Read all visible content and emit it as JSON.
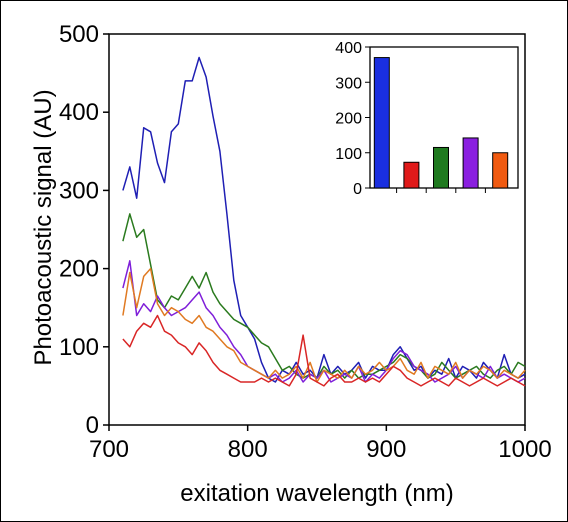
{
  "chart_data": [
    {
      "type": "line",
      "xlabel": "exitation wavelength (nm)",
      "ylabel": "Photoacoustic signal (AU)",
      "xlim": [
        700,
        1000
      ],
      "ylim": [
        0,
        500
      ],
      "xticks": [
        700,
        800,
        900,
        1000
      ],
      "yticks": [
        0,
        100,
        200,
        300,
        400,
        500
      ],
      "grid": false,
      "series": [
        {
          "color": "#1f1fb4",
          "x": [
            710,
            715,
            720,
            725,
            730,
            735,
            740,
            745,
            750,
            755,
            760,
            765,
            770,
            775,
            780,
            785,
            790,
            795,
            800,
            805,
            810,
            815,
            820,
            825,
            830,
            835,
            840,
            845,
            850,
            855,
            860,
            865,
            870,
            875,
            880,
            885,
            890,
            895,
            900,
            905,
            910,
            915,
            920,
            925,
            930,
            935,
            940,
            945,
            950,
            955,
            960,
            965,
            970,
            975,
            980,
            985,
            990,
            995,
            1000
          ],
          "y": [
            300,
            330,
            290,
            380,
            375,
            335,
            310,
            375,
            385,
            440,
            440,
            470,
            445,
            395,
            350,
            270,
            185,
            140,
            125,
            110,
            80,
            60,
            55,
            70,
            65,
            80,
            65,
            70,
            60,
            90,
            65,
            75,
            65,
            70,
            80,
            60,
            75,
            70,
            70,
            90,
            100,
            85,
            70,
            75,
            60,
            70,
            65,
            85,
            60,
            75,
            70,
            60,
            80,
            70,
            60,
            90,
            65,
            60,
            65
          ]
        },
        {
          "color": "#2a7a1e",
          "x": [
            710,
            715,
            720,
            725,
            730,
            735,
            740,
            745,
            750,
            755,
            760,
            765,
            770,
            775,
            780,
            785,
            790,
            795,
            800,
            805,
            810,
            815,
            820,
            825,
            830,
            835,
            840,
            845,
            850,
            855,
            860,
            865,
            870,
            875,
            880,
            885,
            890,
            895,
            900,
            905,
            910,
            915,
            920,
            925,
            930,
            935,
            940,
            945,
            950,
            955,
            960,
            965,
            970,
            975,
            980,
            985,
            990,
            995,
            1000
          ],
          "y": [
            235,
            270,
            240,
            250,
            205,
            160,
            150,
            165,
            160,
            175,
            190,
            175,
            195,
            170,
            155,
            145,
            135,
            130,
            125,
            115,
            105,
            100,
            85,
            70,
            75,
            65,
            60,
            65,
            60,
            75,
            65,
            70,
            60,
            70,
            60,
            65,
            65,
            70,
            75,
            80,
            90,
            85,
            75,
            70,
            60,
            65,
            80,
            70,
            60,
            65,
            70,
            75,
            65,
            60,
            70,
            75,
            65,
            80,
            75
          ]
        },
        {
          "color": "#7f1fd9",
          "x": [
            710,
            715,
            720,
            725,
            730,
            735,
            740,
            745,
            750,
            755,
            760,
            765,
            770,
            775,
            780,
            785,
            790,
            795,
            800,
            805,
            810,
            815,
            820,
            825,
            830,
            835,
            840,
            845,
            850,
            855,
            860,
            865,
            870,
            875,
            880,
            885,
            890,
            895,
            900,
            905,
            910,
            915,
            920,
            925,
            930,
            935,
            940,
            945,
            950,
            955,
            960,
            965,
            970,
            975,
            980,
            985,
            990,
            995,
            1000
          ],
          "y": [
            175,
            210,
            140,
            155,
            145,
            165,
            150,
            140,
            145,
            150,
            160,
            170,
            150,
            140,
            125,
            115,
            100,
            90,
            75,
            70,
            65,
            60,
            65,
            55,
            60,
            70,
            55,
            65,
            60,
            70,
            55,
            60,
            65,
            60,
            75,
            55,
            65,
            60,
            70,
            85,
            95,
            90,
            75,
            70,
            65,
            55,
            60,
            65,
            75,
            60,
            70,
            65,
            60,
            75,
            60,
            65,
            60,
            55,
            60
          ]
        },
        {
          "color": "#e07a22",
          "x": [
            710,
            715,
            720,
            725,
            730,
            735,
            740,
            745,
            750,
            755,
            760,
            765,
            770,
            775,
            780,
            785,
            790,
            795,
            800,
            805,
            810,
            815,
            820,
            825,
            830,
            835,
            840,
            845,
            850,
            855,
            860,
            865,
            870,
            875,
            880,
            885,
            890,
            895,
            900,
            905,
            910,
            915,
            920,
            925,
            930,
            935,
            940,
            945,
            950,
            955,
            960,
            965,
            970,
            975,
            980,
            985,
            990,
            995,
            1000
          ],
          "y": [
            140,
            195,
            150,
            190,
            200,
            155,
            140,
            150,
            145,
            135,
            130,
            140,
            125,
            120,
            110,
            100,
            95,
            80,
            75,
            70,
            65,
            60,
            70,
            60,
            65,
            75,
            60,
            80,
            55,
            70,
            65,
            60,
            70,
            60,
            75,
            65,
            70,
            80,
            70,
            75,
            85,
            70,
            65,
            80,
            60,
            75,
            70,
            65,
            80,
            60,
            70,
            65,
            75,
            70,
            60,
            70,
            65,
            60,
            70
          ]
        },
        {
          "color": "#d92626",
          "x": [
            710,
            715,
            720,
            725,
            730,
            735,
            740,
            745,
            750,
            755,
            760,
            765,
            770,
            775,
            780,
            785,
            790,
            795,
            800,
            805,
            810,
            815,
            820,
            825,
            830,
            835,
            840,
            845,
            850,
            855,
            860,
            865,
            870,
            875,
            880,
            885,
            890,
            895,
            900,
            905,
            910,
            915,
            920,
            925,
            930,
            935,
            940,
            945,
            950,
            955,
            960,
            965,
            970,
            975,
            980,
            985,
            990,
            995,
            1000
          ],
          "y": [
            110,
            100,
            120,
            130,
            125,
            140,
            120,
            115,
            105,
            100,
            90,
            105,
            95,
            80,
            70,
            65,
            60,
            55,
            55,
            55,
            60,
            55,
            60,
            55,
            50,
            65,
            115,
            60,
            55,
            50,
            60,
            65,
            55,
            55,
            60,
            55,
            60,
            55,
            65,
            75,
            70,
            60,
            55,
            50,
            55,
            60,
            55,
            50,
            60,
            55,
            50,
            55,
            60,
            55,
            50,
            55,
            60,
            55,
            50
          ]
        }
      ]
    },
    {
      "type": "bar",
      "ylim": [
        0,
        400
      ],
      "yticks": [
        0,
        100,
        200,
        300,
        400
      ],
      "grid": false,
      "values": [
        370,
        73,
        115,
        142,
        100
      ],
      "colors": [
        "#1a2fe0",
        "#e01a1a",
        "#1f7a1f",
        "#8a1fe0",
        "#f05a10"
      ]
    }
  ]
}
